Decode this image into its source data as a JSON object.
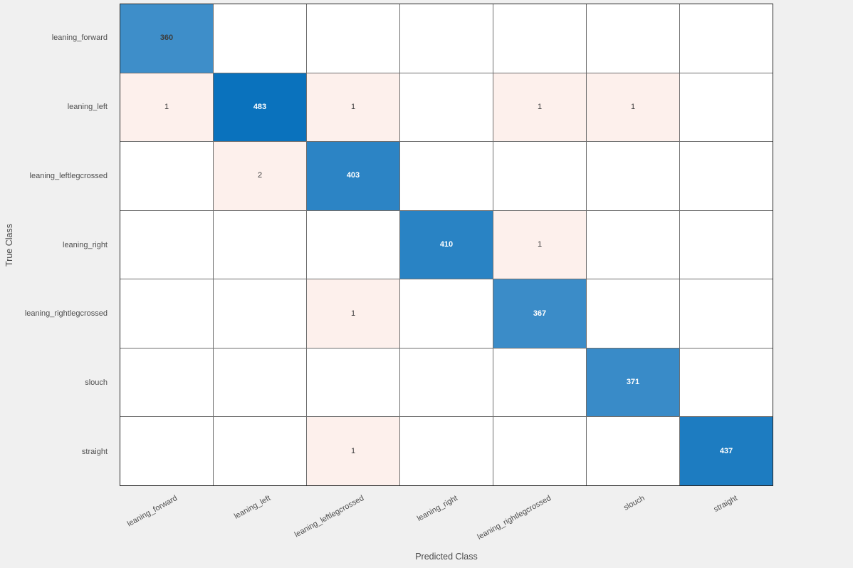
{
  "figure": {
    "background": "#f0f0f0"
  },
  "chart_data": {
    "type": "heatmap",
    "chart_kind": "confusion-matrix",
    "title": "",
    "xlabel": "Predicted Class",
    "ylabel": "True Class",
    "classes": [
      "leaning_forward",
      "leaning_left",
      "leaning_leftlegcrossed",
      "leaning_right",
      "leaning_rightlegcrossed",
      "slouch",
      "straight"
    ],
    "matrix": [
      [
        360,
        0,
        0,
        0,
        0,
        0,
        0
      ],
      [
        1,
        483,
        1,
        0,
        1,
        1,
        0
      ],
      [
        0,
        2,
        403,
        0,
        0,
        0,
        0
      ],
      [
        0,
        0,
        0,
        410,
        1,
        0,
        0
      ],
      [
        0,
        0,
        1,
        0,
        367,
        0,
        0
      ],
      [
        0,
        0,
        0,
        0,
        0,
        371,
        0
      ],
      [
        0,
        0,
        1,
        0,
        0,
        0,
        437
      ]
    ],
    "diagonal_value_range": [
      360,
      483
    ],
    "grid": true,
    "legend_position": "none",
    "colors": {
      "diagonal_low": "#3e8ec9",
      "diagonal_high": "#0a72bd",
      "off_diagonal": "#fdf0ec",
      "empty_cell": "#ffffff",
      "grid_line": "#6e6e6e",
      "outer_border": "#262626",
      "cell_text_dark": "#3d3d3d",
      "cell_text_light": "#ffffff",
      "tick_label": "#4e4e4e",
      "axis_label": "#4a4a4a"
    }
  }
}
